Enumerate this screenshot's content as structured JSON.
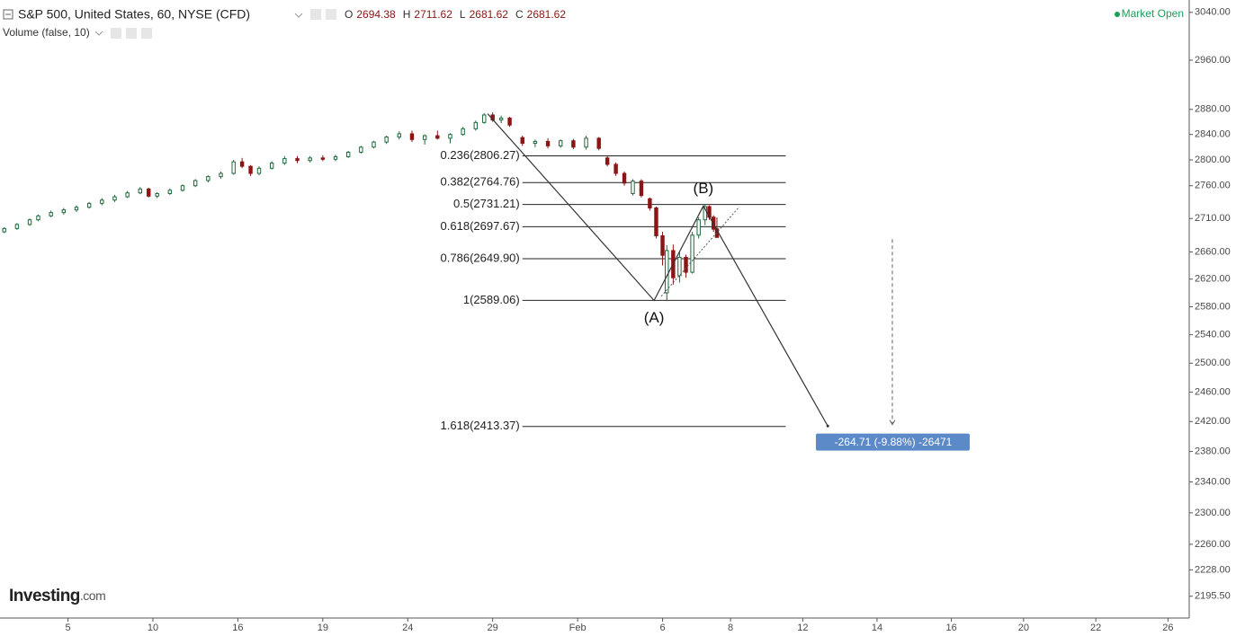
{
  "chart_data": {
    "type": "candlestick",
    "title": "S&P 500, United States, 60, NYSE (CFD)",
    "ohlc": [
      {
        "label": "O",
        "value": "2694.38"
      },
      {
        "label": "H",
        "value": "2711.62"
      },
      {
        "label": "L",
        "value": "2681.62"
      },
      {
        "label": "C",
        "value": "2681.62"
      }
    ],
    "indicator": "Volume (false, 10)",
    "status": "Market Open",
    "brand": [
      "Investing",
      ".com"
    ],
    "log_scale": true,
    "up_color": "#1d6b3c",
    "down_color": "#8b1414",
    "xlim": [
      0,
      280
    ],
    "ylim": [
      2169,
      3061
    ],
    "xticks": [
      {
        "value": 16,
        "label": "5"
      },
      {
        "value": 36,
        "label": "10"
      },
      {
        "value": 56,
        "label": "16"
      },
      {
        "value": 76,
        "label": "19"
      },
      {
        "value": 96,
        "label": "24"
      },
      {
        "value": 116,
        "label": "29"
      },
      {
        "value": 136,
        "label": "Feb"
      },
      {
        "value": 156,
        "label": "6"
      },
      {
        "value": 172,
        "label": "8"
      },
      {
        "value": 189,
        "label": "12"
      },
      {
        "value": 206.5,
        "label": "14"
      },
      {
        "value": 224,
        "label": "16"
      },
      {
        "value": 241,
        "label": "20"
      },
      {
        "value": 258,
        "label": "22"
      },
      {
        "value": 275,
        "label": "26"
      }
    ],
    "yticks": [
      {
        "value": 3040,
        "label": "3040.00"
      },
      {
        "value": 2960,
        "label": "2960.00"
      },
      {
        "value": 2880,
        "label": "2880.00"
      },
      {
        "value": 2840,
        "label": "2840.00"
      },
      {
        "value": 2800,
        "label": "2800.00"
      },
      {
        "value": 2760,
        "label": "2760.00"
      },
      {
        "value": 2710,
        "label": "2710.00"
      },
      {
        "value": 2660,
        "label": "2660.00"
      },
      {
        "value": 2620,
        "label": "2620.00"
      },
      {
        "value": 2580,
        "label": "2580.00"
      },
      {
        "value": 2540,
        "label": "2540.00"
      },
      {
        "value": 2500,
        "label": "2500.00"
      },
      {
        "value": 2460,
        "label": "2460.00"
      },
      {
        "value": 2420,
        "label": "2420.00"
      },
      {
        "value": 2380,
        "label": "2380.00"
      },
      {
        "value": 2340,
        "label": "2340.00"
      },
      {
        "value": 2300,
        "label": "2300.00"
      },
      {
        "value": 2260,
        "label": "2260.00"
      },
      {
        "value": 2228,
        "label": "2228.00"
      },
      {
        "value": 2195.5,
        "label": "2195.50"
      }
    ],
    "candles": {
      "x": [
        1,
        4,
        7,
        9,
        12,
        15,
        18,
        21,
        24,
        27,
        30,
        33,
        35,
        37,
        40,
        43,
        46,
        49,
        52,
        55,
        57,
        59,
        61,
        64,
        67,
        70,
        73,
        76,
        79,
        82,
        85,
        88,
        91,
        94,
        97,
        100,
        103,
        106,
        109,
        112,
        114,
        116,
        118,
        120,
        123,
        126,
        129,
        132,
        135,
        138,
        141,
        143,
        145,
        147,
        149,
        151,
        153,
        154.5,
        156,
        157,
        158.5,
        160,
        161.5,
        163,
        164.5,
        166,
        167,
        168,
        168.8
      ],
      "open": [
        2690,
        2695,
        2701,
        2708,
        2714,
        2719,
        2723,
        2727,
        2733,
        2738,
        2743,
        2749,
        2755,
        2744,
        2748,
        2753,
        2760,
        2768,
        2774,
        2779,
        2797,
        2790,
        2779,
        2787,
        2795,
        2802,
        2799,
        2803,
        2801,
        2805,
        2812,
        2820,
        2828,
        2836,
        2841,
        2832,
        2838,
        2834,
        2840,
        2849,
        2859,
        2871,
        2863,
        2866,
        2835,
        2826,
        2829,
        2822,
        2830,
        2820,
        2834,
        2803,
        2793,
        2779,
        2748,
        2767,
        2740,
        2726,
        2684,
        2600,
        2662,
        2625,
        2652,
        2630,
        2685,
        2708,
        2728,
        2712,
        2694.38
      ],
      "high": [
        2697,
        2703,
        2710,
        2716,
        2722,
        2726,
        2730,
        2735,
        2741,
        2746,
        2752,
        2758,
        2757,
        2750,
        2756,
        2762,
        2770,
        2776,
        2782,
        2800,
        2803,
        2792,
        2790,
        2798,
        2806,
        2806,
        2806,
        2807,
        2808,
        2814,
        2822,
        2830,
        2838,
        2845,
        2846,
        2840,
        2846,
        2842,
        2852,
        2862,
        2874,
        2875,
        2870,
        2868,
        2838,
        2832,
        2834,
        2832,
        2833,
        2838,
        2836,
        2806,
        2796,
        2782,
        2770,
        2770,
        2742,
        2728,
        2690,
        2670,
        2671,
        2660,
        2656,
        2690,
        2712,
        2731,
        2730,
        2715,
        2711.62
      ],
      "low": [
        2688,
        2693,
        2699,
        2706,
        2712,
        2716,
        2720,
        2725,
        2730,
        2735,
        2741,
        2747,
        2742,
        2741,
        2746,
        2751,
        2758,
        2765,
        2771,
        2777,
        2787,
        2775,
        2776,
        2785,
        2792,
        2795,
        2796,
        2798,
        2798,
        2803,
        2810,
        2818,
        2825,
        2832,
        2828,
        2824,
        2832,
        2826,
        2838,
        2846,
        2857,
        2860,
        2858,
        2852,
        2822,
        2820,
        2818,
        2819,
        2817,
        2816,
        2815,
        2790,
        2775,
        2760,
        2745,
        2742,
        2722,
        2680,
        2640,
        2589,
        2612,
        2615,
        2622,
        2628,
        2680,
        2700,
        2708,
        2690,
        2681.62
      ],
      "close": [
        2695,
        2701,
        2708,
        2714,
        2719,
        2723,
        2727,
        2733,
        2738,
        2743,
        2749,
        2755,
        2744,
        2748,
        2753,
        2760,
        2768,
        2774,
        2779,
        2797,
        2790,
        2779,
        2787,
        2795,
        2802,
        2799,
        2803,
        2801,
        2805,
        2812,
        2820,
        2828,
        2836,
        2841,
        2832,
        2838,
        2834,
        2840,
        2849,
        2859,
        2871,
        2863,
        2866,
        2855,
        2826,
        2829,
        2822,
        2830,
        2820,
        2834,
        2818,
        2793,
        2779,
        2764,
        2767,
        2745,
        2726,
        2684,
        2655,
        2662,
        2622,
        2652,
        2630,
        2685,
        2708,
        2728,
        2712,
        2694,
        2681.62
      ]
    },
    "fib_range": [
      123,
      185
    ],
    "fib_levels": [
      {
        "label": "0.236(2806.27)",
        "value": 2806.27
      },
      {
        "label": "0.382(2764.76)",
        "value": 2764.76
      },
      {
        "label": "0.5(2731.21)",
        "value": 2731.21
      },
      {
        "label": "0.618(2697.67)",
        "value": 2697.67
      },
      {
        "label": "0.786(2649.90)",
        "value": 2649.9
      },
      {
        "label": "1(2589.06)",
        "value": 2589.06
      },
      {
        "label": "1.618(2413.37)",
        "value": 2413.37
      }
    ],
    "wave": {
      "x": [
        114.8,
        154,
        165.6,
        194.9
      ],
      "y": [
        2873,
        2589,
        2729,
        2414
      ]
    },
    "channel": {
      "x": [
        155.7,
        174.1
      ],
      "y": [
        2595,
        2728
      ]
    },
    "wave_labels": [
      {
        "text": "(A)",
        "x": 154,
        "y": 2589
      },
      {
        "text": "(B)",
        "x": 165.6,
        "y": 2729
      }
    ],
    "measure": {
      "x": 210.1,
      "from": 2679,
      "to": 2416
    },
    "measure_label": "-264.71 (-9.88%) -26471"
  }
}
